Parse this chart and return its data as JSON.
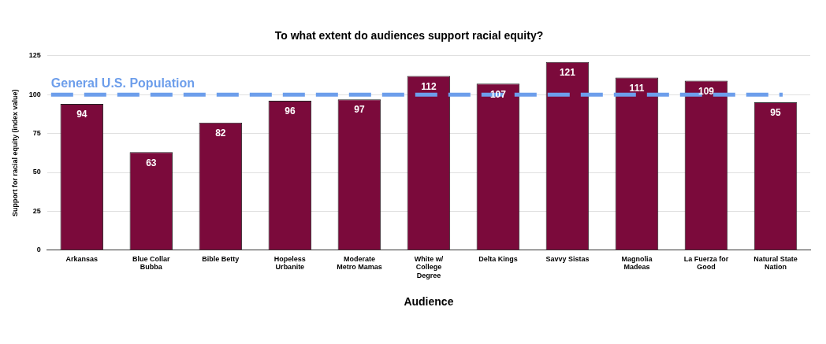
{
  "chart_data": {
    "type": "bar",
    "title": "To what extent do audiences support racial equity?",
    "xlabel": "Audience",
    "ylabel": "Support for racial equity (index value)",
    "categories": [
      "Arkansas",
      "Blue Collar Bubba",
      "Bible Betty",
      "Hopeless Urbanite",
      "Moderate Metro Mamas",
      "White w/ College Degree",
      "Delta Kings",
      "Savvy Sistas",
      "Magnolia Madeas",
      "La Fuerza for Good",
      "Natural State Nation"
    ],
    "values": [
      94,
      63,
      82,
      96,
      97,
      112,
      107,
      121,
      111,
      109,
      95
    ],
    "color": "#7b0a3b",
    "ylim": [
      0,
      125
    ],
    "yticks": [
      0,
      25,
      50,
      75,
      100,
      125
    ],
    "grid": "y",
    "legend": false,
    "data_labels": true,
    "ref_lines": [
      {
        "axis": "y",
        "value": 100,
        "label": "General U.S. Population",
        "color": "#6d9eeb",
        "line_style": "dashed"
      }
    ]
  }
}
